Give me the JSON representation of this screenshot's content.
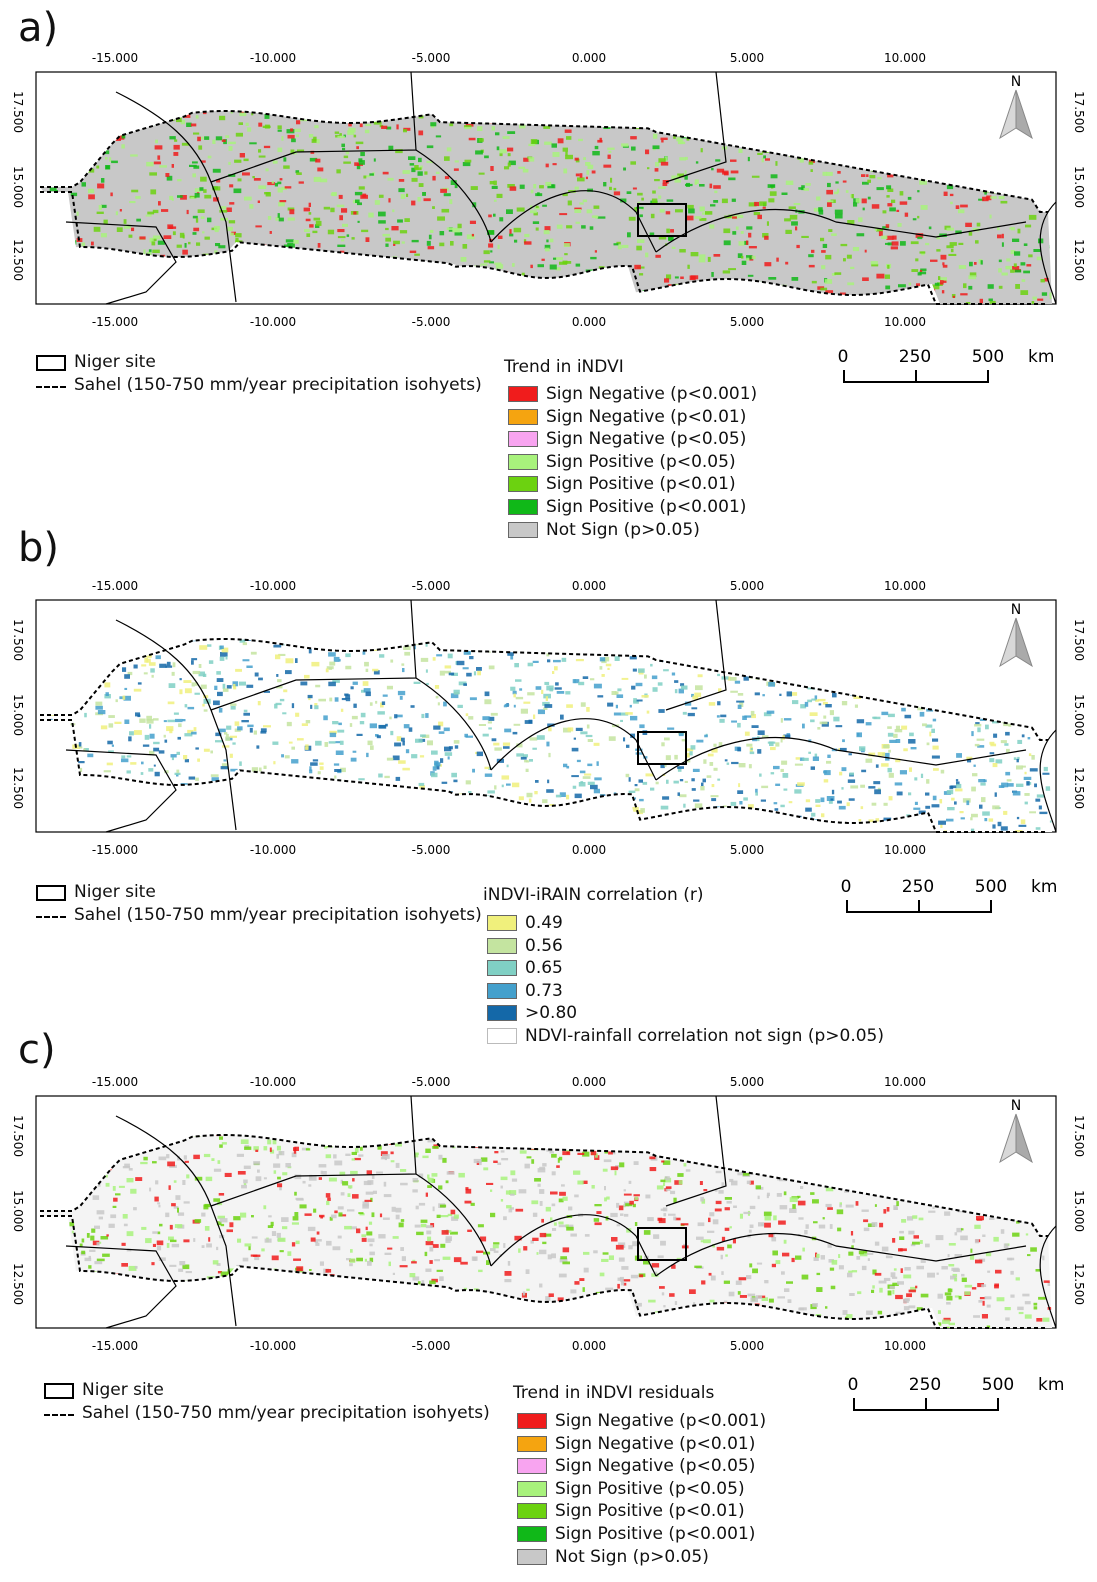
{
  "panels": [
    {
      "label": "a)",
      "top_ticks": [
        "-15.000",
        "-10.000",
        "-5.000",
        "0.000",
        "5.000",
        "10.000"
      ],
      "side_ticks": [
        "17.500",
        "15.000",
        "12.500"
      ],
      "north": "N",
      "legend_site": "Niger site",
      "legend_sahel": "Sahel (150-750 mm/year precipitation isohyets)",
      "legend_title": "Trend in iNDVI",
      "classes": [
        {
          "label": "Sign Negative (p<0.001)",
          "color": "#f01c1c"
        },
        {
          "label": "Sign Negative (p<0.01)",
          "color": "#f5a410"
        },
        {
          "label": "Sign Negative (p<0.05)",
          "color": "#f8a4f0"
        },
        {
          "label": "Sign Positive (p<0.05)",
          "color": "#a8f27c"
        },
        {
          "label": "Sign Positive (p<0.01)",
          "color": "#6cd210"
        },
        {
          "label": "Sign Positive (p<0.001)",
          "color": "#10b818"
        },
        {
          "label": "Not Sign (p>0.05)",
          "color": "#c8c8c8"
        }
      ],
      "scale": [
        "0",
        "250",
        "500",
        "km"
      ]
    },
    {
      "label": "b)",
      "top_ticks": [
        "-15.000",
        "-10.000",
        "-5.000",
        "0.000",
        "5.000",
        "10.000"
      ],
      "side_ticks": [
        "17.500",
        "15.000",
        "12.500"
      ],
      "north": "N",
      "legend_site": "Niger site",
      "legend_sahel": "Sahel (150-750 mm/year precipitation isohyets)",
      "legend_title": "iNDVI-iRAIN correlation (r)",
      "classes": [
        {
          "label": "0.49",
          "color": "#f0f07c"
        },
        {
          "label": "0.56",
          "color": "#c4e4a0"
        },
        {
          "label": "0.65",
          "color": "#80d0c4"
        },
        {
          "label": "0.73",
          "color": "#44a0cc"
        },
        {
          "label": ">0.80",
          "color": "#1468a8"
        },
        {
          "label": "NDVI-rainfall correlation not sign (p>0.05)",
          "color": "#ffffff"
        }
      ],
      "scale": [
        "0",
        "250",
        "500",
        "km"
      ]
    },
    {
      "label": "c)",
      "top_ticks": [
        "-15.000",
        "-10.000",
        "-5.000",
        "0.000",
        "5.000",
        "10.000"
      ],
      "side_ticks": [
        "17.500",
        "15.000",
        "12.500"
      ],
      "north": "N",
      "legend_site": "Niger site",
      "legend_sahel": "Sahel (150-750 mm/year precipitation isohyets)",
      "legend_title": "Trend in iNDVI residuals",
      "classes": [
        {
          "label": "Sign Negative (p<0.001)",
          "color": "#f01c1c"
        },
        {
          "label": "Sign Negative (p<0.01)",
          "color": "#f5a410"
        },
        {
          "label": "Sign Negative (p<0.05)",
          "color": "#f8a4f0"
        },
        {
          "label": "Sign Positive (p<0.05)",
          "color": "#a8f27c"
        },
        {
          "label": "Sign Positive (p<0.01)",
          "color": "#6cd210"
        },
        {
          "label": "Sign Positive (p<0.001)",
          "color": "#10b818"
        },
        {
          "label": "Not Sign (p>0.05)",
          "color": "#c8c8c8"
        }
      ],
      "scale": [
        "0",
        "250",
        "500",
        "km"
      ]
    }
  ]
}
